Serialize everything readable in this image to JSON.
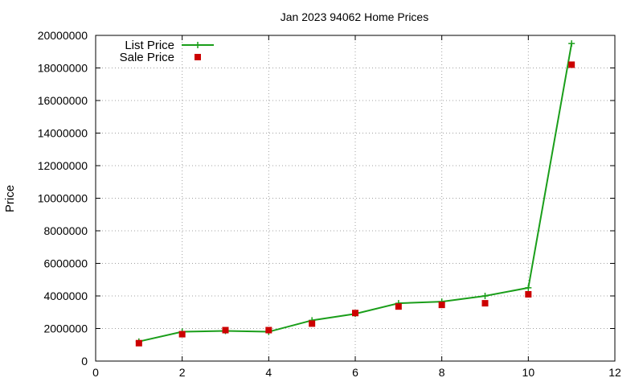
{
  "chart_data": {
    "type": "line",
    "title": "Jan 2023 94062 Home Prices",
    "xlabel": "",
    "ylabel": "Price",
    "xlim": [
      0,
      12
    ],
    "ylim": [
      0,
      20000000
    ],
    "xticks": [
      0,
      2,
      4,
      6,
      8,
      10,
      12
    ],
    "yticks": [
      0,
      2000000,
      4000000,
      6000000,
      8000000,
      10000000,
      12000000,
      14000000,
      16000000,
      18000000,
      20000000
    ],
    "xtick_labels": [
      "0",
      "2",
      "4",
      "6",
      "8",
      "10",
      "12"
    ],
    "ytick_labels": [
      "0",
      "2000000",
      "4000000",
      "6000000",
      "8000000",
      "10000000",
      "12000000",
      "14000000",
      "16000000",
      "18000000",
      "20000000"
    ],
    "grid": true,
    "legend": "top-left",
    "x": [
      1,
      2,
      3,
      4,
      5,
      6,
      7,
      8,
      9,
      10,
      11
    ],
    "series": [
      {
        "name": "List Price",
        "style": "line-with-plus-markers",
        "color": "#1a9e1a",
        "values": [
          1200000,
          1800000,
          1850000,
          1800000,
          2500000,
          2900000,
          3550000,
          3650000,
          4000000,
          4500000,
          19500000
        ]
      },
      {
        "name": "Sale Price",
        "style": "square-markers",
        "color": "#cc0000",
        "values": [
          1100000,
          1650000,
          1900000,
          1900000,
          2300000,
          2950000,
          3350000,
          3450000,
          3550000,
          4100000,
          18200000
        ]
      }
    ]
  }
}
